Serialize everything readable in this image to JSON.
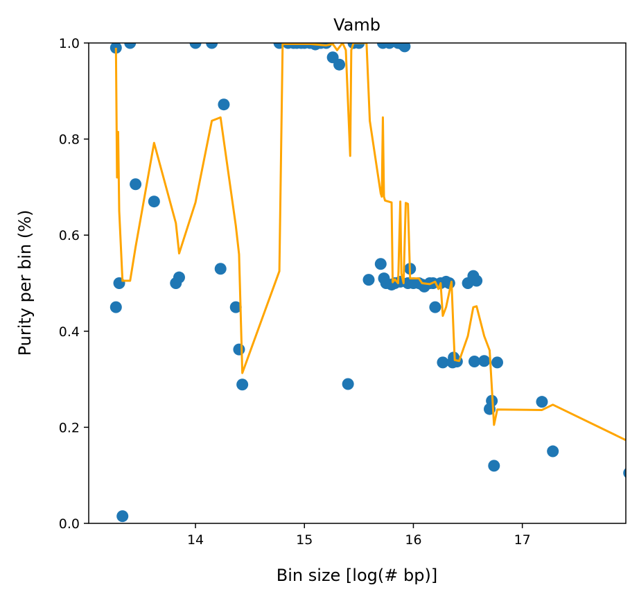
{
  "chart_data": {
    "type": "scatter",
    "title": "Vamb",
    "xlabel": "Bin size [log(# bp)]",
    "ylabel": "Purity per bin (%)",
    "xlim": [
      13.02,
      17.95
    ],
    "ylim": [
      0.0,
      1.0
    ],
    "xticks": [
      14,
      15,
      16,
      17
    ],
    "xtick_labels": [
      "14",
      "15",
      "16",
      "17"
    ],
    "yticks": [
      0.0,
      0.2,
      0.4,
      0.6,
      0.8,
      1.0
    ],
    "ytick_labels": [
      "0.0",
      "0.2",
      "0.4",
      "0.6",
      "0.8",
      "1.0"
    ],
    "grid": false,
    "colors": {
      "points": "#1f77b4",
      "line": "#ffa500"
    },
    "series": [
      {
        "kind": "scatter",
        "points": [
          [
            13.27,
            0.45
          ],
          [
            13.27,
            0.99
          ],
          [
            13.3,
            0.5
          ],
          [
            13.33,
            0.015
          ],
          [
            13.4,
            1.0
          ],
          [
            13.45,
            0.706
          ],
          [
            13.62,
            0.67
          ],
          [
            13.82,
            0.5
          ],
          [
            13.85,
            0.512
          ],
          [
            14.0,
            1.0
          ],
          [
            14.15,
            1.0
          ],
          [
            14.23,
            0.53
          ],
          [
            14.26,
            0.872
          ],
          [
            14.37,
            0.45
          ],
          [
            14.4,
            0.362
          ],
          [
            14.43,
            0.289
          ],
          [
            14.77,
            1.0
          ],
          [
            14.85,
            1.0
          ],
          [
            14.9,
            1.0
          ],
          [
            14.93,
            1.0
          ],
          [
            14.97,
            1.0
          ],
          [
            15.0,
            1.0
          ],
          [
            15.05,
            1.0
          ],
          [
            15.1,
            0.997
          ],
          [
            15.15,
            1.0
          ],
          [
            15.2,
            1.0
          ],
          [
            15.26,
            0.97
          ],
          [
            15.32,
            0.955
          ],
          [
            15.4,
            0.29
          ],
          [
            15.45,
            1.0
          ],
          [
            15.5,
            1.0
          ],
          [
            15.59,
            0.507
          ],
          [
            15.7,
            0.54
          ],
          [
            15.72,
            1.0
          ],
          [
            15.73,
            0.51
          ],
          [
            15.75,
            0.5
          ],
          [
            15.78,
            1.0
          ],
          [
            15.8,
            0.497
          ],
          [
            15.83,
            0.5
          ],
          [
            15.86,
            1.0
          ],
          [
            15.88,
            0.503
          ],
          [
            15.9,
            0.997
          ],
          [
            15.92,
            0.993
          ],
          [
            15.95,
            0.5
          ],
          [
            15.97,
            0.53
          ],
          [
            16.0,
            0.5
          ],
          [
            16.05,
            0.5
          ],
          [
            16.08,
            0.497
          ],
          [
            16.1,
            0.493
          ],
          [
            16.15,
            0.5
          ],
          [
            16.18,
            0.5
          ],
          [
            16.2,
            0.45
          ],
          [
            16.25,
            0.5
          ],
          [
            16.27,
            0.335
          ],
          [
            16.3,
            0.503
          ],
          [
            16.33,
            0.5
          ],
          [
            16.36,
            0.335
          ],
          [
            16.37,
            0.345
          ],
          [
            16.4,
            0.337
          ],
          [
            16.5,
            0.5
          ],
          [
            16.55,
            0.515
          ],
          [
            16.56,
            0.337
          ],
          [
            16.58,
            0.505
          ],
          [
            16.65,
            0.338
          ],
          [
            16.7,
            0.238
          ],
          [
            16.72,
            0.255
          ],
          [
            16.74,
            0.12
          ],
          [
            16.77,
            0.335
          ],
          [
            17.18,
            0.253
          ],
          [
            17.28,
            0.15
          ],
          [
            17.98,
            0.105
          ]
        ]
      },
      {
        "kind": "line",
        "points": [
          [
            13.27,
            0.99
          ],
          [
            13.28,
            0.72
          ],
          [
            13.29,
            0.815
          ],
          [
            13.3,
            0.65
          ],
          [
            13.33,
            0.505
          ],
          [
            13.4,
            0.505
          ],
          [
            13.45,
            0.575
          ],
          [
            13.62,
            0.792
          ],
          [
            13.82,
            0.625
          ],
          [
            13.85,
            0.562
          ],
          [
            14.0,
            0.668
          ],
          [
            14.15,
            0.838
          ],
          [
            14.23,
            0.845
          ],
          [
            14.37,
            0.62
          ],
          [
            14.4,
            0.56
          ],
          [
            14.43,
            0.313
          ],
          [
            14.77,
            0.525
          ],
          [
            14.8,
            0.998
          ],
          [
            15.05,
            0.998
          ],
          [
            15.2,
            0.995
          ],
          [
            15.26,
            0.998
          ],
          [
            15.3,
            0.985
          ],
          [
            15.35,
            1.0
          ],
          [
            15.38,
            0.985
          ],
          [
            15.42,
            0.765
          ],
          [
            15.43,
            0.985
          ],
          [
            15.45,
            1.0
          ],
          [
            15.57,
            1.0
          ],
          [
            15.6,
            0.838
          ],
          [
            15.7,
            0.687
          ],
          [
            15.71,
            0.68
          ],
          [
            15.72,
            0.845
          ],
          [
            15.73,
            0.68
          ],
          [
            15.74,
            0.672
          ],
          [
            15.8,
            0.668
          ],
          [
            15.81,
            0.502
          ],
          [
            15.83,
            0.508
          ],
          [
            15.86,
            0.5
          ],
          [
            15.88,
            0.67
          ],
          [
            15.89,
            0.52
          ],
          [
            15.91,
            0.5
          ],
          [
            15.93,
            0.667
          ],
          [
            15.95,
            0.665
          ],
          [
            15.97,
            0.51
          ],
          [
            16.05,
            0.51
          ],
          [
            16.08,
            0.5
          ],
          [
            16.15,
            0.498
          ],
          [
            16.2,
            0.503
          ],
          [
            16.23,
            0.488
          ],
          [
            16.25,
            0.5
          ],
          [
            16.27,
            0.432
          ],
          [
            16.3,
            0.45
          ],
          [
            16.35,
            0.503
          ],
          [
            16.37,
            0.39
          ],
          [
            16.38,
            0.34
          ],
          [
            16.42,
            0.338
          ],
          [
            16.5,
            0.39
          ],
          [
            16.55,
            0.45
          ],
          [
            16.58,
            0.452
          ],
          [
            16.65,
            0.39
          ],
          [
            16.7,
            0.36
          ],
          [
            16.74,
            0.205
          ],
          [
            16.77,
            0.237
          ],
          [
            17.18,
            0.236
          ],
          [
            17.28,
            0.247
          ],
          [
            17.98,
            0.17
          ]
        ]
      }
    ]
  }
}
